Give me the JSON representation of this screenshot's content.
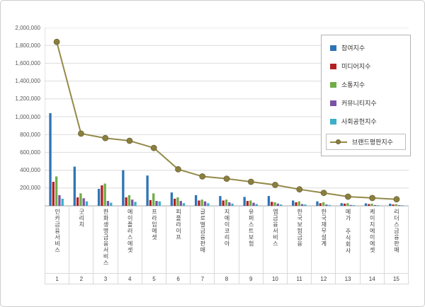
{
  "chart_data": {
    "type": "bar",
    "title": "",
    "categories": [
      "인카금융서비스",
      "굿리치",
      "한화생명금융서비스",
      "에이플러스에셋",
      "프라임에셋",
      "피플라이프",
      "글로벌금융판매",
      "지에이코리아",
      "유퍼스트보험",
      "엠금융서비스",
      "한국보험금융",
      "한국재무설계",
      "메가 주식회사",
      "케이지에이에셋",
      "리더스금융판매"
    ],
    "rank_labels": [
      "1",
      "2",
      "3",
      "4",
      "5",
      "6",
      "7",
      "8",
      "9",
      "10",
      "11",
      "12",
      "13",
      "14",
      "15"
    ],
    "series": [
      {
        "name": "참여지수",
        "type": "bar",
        "color": "#2E74B5",
        "values": [
          1040000,
          440000,
          190000,
          400000,
          340000,
          150000,
          120000,
          110000,
          100000,
          110000,
          60000,
          50000,
          30000,
          28000,
          24000
        ]
      },
      {
        "name": "미디어지수",
        "type": "bar",
        "color": "#B22222",
        "values": [
          270000,
          95000,
          230000,
          95000,
          65000,
          80000,
          60000,
          60000,
          55000,
          45000,
          40000,
          30000,
          25000,
          20000,
          15000
        ]
      },
      {
        "name": "소통지수",
        "type": "bar",
        "color": "#70AD47",
        "values": [
          330000,
          140000,
          250000,
          120000,
          140000,
          95000,
          70000,
          70000,
          60000,
          40000,
          50000,
          40000,
          30000,
          24000,
          20000
        ]
      },
      {
        "name": "커뮤니티지수",
        "type": "bar",
        "color": "#7B52A5",
        "values": [
          120000,
          85000,
          55000,
          70000,
          55000,
          55000,
          50000,
          40000,
          35000,
          25000,
          20000,
          15000,
          10000,
          9000,
          8000
        ]
      },
      {
        "name": "사회공헌지수",
        "type": "bar",
        "color": "#3BAEC8",
        "values": [
          80000,
          50000,
          35000,
          45000,
          50000,
          30000,
          30000,
          25000,
          20000,
          15000,
          15000,
          10000,
          8000,
          7000,
          7000
        ]
      },
      {
        "name": "브랜드평판지수",
        "type": "line",
        "color": "#948A49",
        "marker_color": "#8A7F3F",
        "values": [
          1840000,
          810000,
          760000,
          730000,
          650000,
          410000,
          330000,
          305000,
          270000,
          235000,
          185000,
          145000,
          103000,
          88000,
          74000
        ]
      }
    ],
    "ylim": [
      0,
      2000000
    ],
    "ytick_step": 200000,
    "ytick_labels": [
      "200,000",
      "400,000",
      "600,000",
      "800,000",
      "1,000,000",
      "1,200,000",
      "1,400,000",
      "1,600,000",
      "1,800,000",
      "2,000,000"
    ],
    "grid": true,
    "legend_position": "top-right",
    "xlabel": "",
    "ylabel": ""
  },
  "colors": {
    "gridline": "#dcdcdc",
    "axis": "#a6a6a6",
    "label_text": "#595959",
    "frame_border": "#cdcdcd"
  }
}
